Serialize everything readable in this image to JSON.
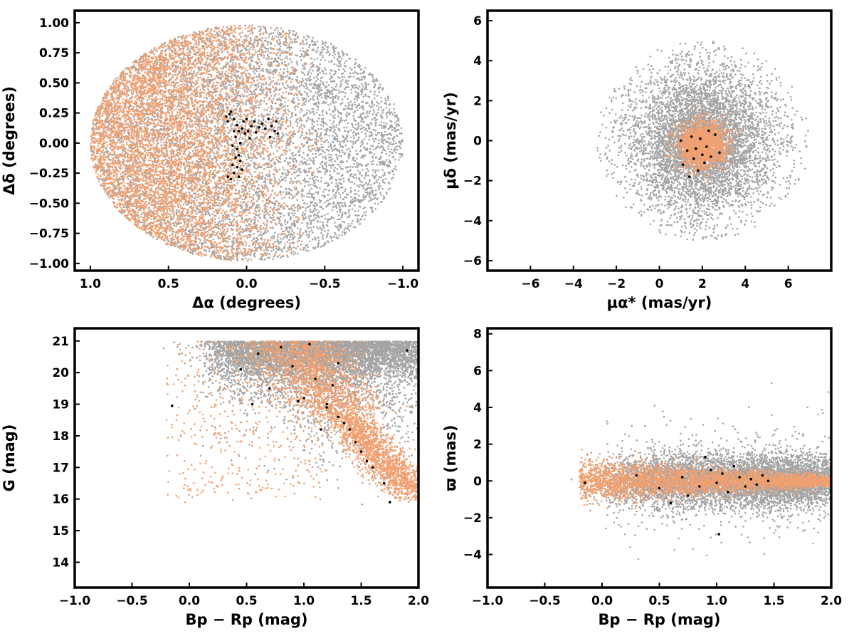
{
  "colors": {
    "field": "#a4a4a4",
    "candidate": "#f0a070",
    "member": "#000000",
    "frame": "#000000"
  },
  "chart_data": [
    {
      "id": "sky",
      "type": "scatter",
      "xlabel": "Δα (degrees)",
      "ylabel": "Δδ (degrees)",
      "xlim": [
        1.1,
        -1.1
      ],
      "ylim": [
        -1.06,
        1.1
      ],
      "x_ticks": [
        1.0,
        0.5,
        0.0,
        -0.5,
        -1.0
      ],
      "x_tick_labels": [
        "1.0",
        "0.5",
        "0.0",
        "−0.5",
        "−1.0"
      ],
      "y_ticks": [
        1.0,
        0.75,
        0.5,
        0.25,
        0.0,
        -0.25,
        -0.5,
        -0.75,
        -1.0
      ],
      "y_tick_labels": [
        "1.00",
        "0.75",
        "0.50",
        "0.25",
        "0.00",
        "−0.25",
        "−0.50",
        "−0.75",
        "−1.00"
      ],
      "series": [
        {
          "role": "field",
          "color": "#a4a4a4",
          "distribution": "disk",
          "center": [
            0,
            0
          ],
          "radius": [
            1.0,
            0.98
          ],
          "count": 6500
        },
        {
          "role": "candidate",
          "color": "#f0a070",
          "distribution": "disk",
          "center": [
            0,
            0
          ],
          "radius": [
            1.0,
            0.98
          ],
          "weight": "east-heavy",
          "count": 6000
        },
        {
          "role": "member",
          "color": "#000000",
          "points": [
            [
              0.13,
              0.22
            ],
            [
              0.12,
              0.18
            ],
            [
              0.1,
              0.26
            ],
            [
              0.08,
              0.2
            ],
            [
              0.06,
              0.15
            ],
            [
              0.05,
              0.1
            ],
            [
              0.07,
              0.05
            ],
            [
              0.04,
              0.0
            ],
            [
              0.06,
              -0.05
            ],
            [
              0.05,
              -0.1
            ],
            [
              0.04,
              -0.15
            ],
            [
              0.06,
              -0.2
            ],
            [
              0.08,
              -0.25
            ],
            [
              0.1,
              -0.3
            ],
            [
              0.12,
              -0.28
            ],
            [
              0.03,
              0.12
            ],
            [
              0.02,
              0.18
            ],
            [
              0.01,
              0.08
            ],
            [
              -0.01,
              0.1
            ],
            [
              -0.03,
              0.14
            ],
            [
              -0.05,
              0.18
            ],
            [
              -0.08,
              0.13
            ],
            [
              -0.1,
              0.16
            ],
            [
              -0.12,
              0.12
            ],
            [
              -0.14,
              0.2
            ],
            [
              -0.16,
              0.14
            ],
            [
              -0.18,
              0.1
            ],
            [
              -0.2,
              0.08
            ],
            [
              -0.19,
              0.18
            ],
            [
              -0.15,
              0.05
            ],
            [
              -0.02,
              0.04
            ],
            [
              0.09,
              -0.02
            ],
            [
              0.07,
              -0.12
            ],
            [
              0.03,
              -0.22
            ],
            [
              0.09,
              -0.18
            ],
            [
              0.11,
              0.24
            ],
            [
              0.0,
              0.2
            ],
            [
              -0.06,
              0.09
            ],
            [
              0.05,
              -0.28
            ],
            [
              0.08,
              0.1
            ]
          ]
        }
      ]
    },
    {
      "id": "proper-motion",
      "type": "scatter",
      "xlabel": "μα* (mas/yr)",
      "ylabel": "μδ (mas/yr)",
      "xlim": [
        -8,
        8
      ],
      "ylim": [
        -6.5,
        6.5
      ],
      "x_ticks": [
        -6,
        -4,
        -2,
        0,
        2,
        4,
        6
      ],
      "x_tick_labels": [
        "−6",
        "−4",
        "−2",
        "0",
        "2",
        "4",
        "6"
      ],
      "y_ticks": [
        6,
        4,
        2,
        0,
        -2,
        -4,
        -6
      ],
      "y_tick_labels": [
        "6",
        "4",
        "2",
        "0",
        "−2",
        "−4",
        "−6"
      ],
      "series": [
        {
          "role": "field",
          "color": "#a4a4a4",
          "distribution": "gaussian-clipped",
          "center": [
            2.0,
            0.0
          ],
          "sigma": [
            1.6,
            1.8
          ],
          "clip_radius": 5.0,
          "count": 6000
        },
        {
          "role": "candidate",
          "color": "#f0a070",
          "distribution": "gaussian",
          "center": [
            2.0,
            -0.2
          ],
          "sigma": [
            0.55,
            0.55
          ],
          "count": 1800
        },
        {
          "role": "member",
          "color": "#000000",
          "points": [
            [
              1.3,
              -0.5
            ],
            [
              1.6,
              -0.9
            ],
            [
              2.2,
              -0.3
            ],
            [
              1.9,
              0.1
            ],
            [
              2.4,
              -0.8
            ],
            [
              1.1,
              -1.2
            ],
            [
              1.8,
              -1.5
            ],
            [
              2.6,
              0.3
            ],
            [
              1.5,
              0.2
            ],
            [
              2.1,
              -1.1
            ],
            [
              1.0,
              0.0
            ],
            [
              2.8,
              -0.6
            ],
            [
              1.7,
              -0.4
            ],
            [
              2.3,
              0.5
            ],
            [
              1.4,
              -1.8
            ],
            [
              2.0,
              -0.7
            ]
          ]
        }
      ]
    },
    {
      "id": "cmd",
      "type": "scatter",
      "xlabel": "Bp − Rp (mag)",
      "ylabel": "G (mag)",
      "xlim": [
        -1.0,
        2.0
      ],
      "ylim": [
        13.2,
        21.4
      ],
      "y_inverted": false,
      "x_ticks": [
        -1.0,
        -0.5,
        0.0,
        0.5,
        1.0,
        1.5,
        2.0
      ],
      "x_tick_labels": [
        "−1.0",
        "−0.5",
        "0.0",
        "0.5",
        "1.0",
        "1.5",
        "2.0"
      ],
      "y_ticks": [
        21,
        20,
        19,
        18,
        17,
        16,
        15,
        14
      ],
      "y_tick_labels": [
        "21",
        "20",
        "19",
        "18",
        "17",
        "16",
        "15",
        "14"
      ],
      "series": [
        {
          "role": "field",
          "color": "#a4a4a4",
          "distribution": "cmd-field",
          "count": 6000
        },
        {
          "role": "candidate",
          "color": "#f0a070",
          "distribution": "cmd-sequence",
          "count": 3500
        },
        {
          "role": "member",
          "color": "#000000",
          "points": [
            [
              0.6,
              20.6
            ],
            [
              0.7,
              19.5
            ],
            [
              0.9,
              20.2
            ],
            [
              1.0,
              19.2
            ],
            [
              1.1,
              19.8
            ],
            [
              1.2,
              19.0
            ],
            [
              1.3,
              18.6
            ],
            [
              1.35,
              18.4
            ],
            [
              1.4,
              18.2
            ],
            [
              1.5,
              17.5
            ],
            [
              1.55,
              17.2
            ],
            [
              1.6,
              17.0
            ],
            [
              1.7,
              16.5
            ],
            [
              1.75,
              15.9
            ],
            [
              1.2,
              18.9
            ],
            [
              1.25,
              19.6
            ],
            [
              1.05,
              20.9
            ],
            [
              0.8,
              20.8
            ],
            [
              -0.15,
              18.95
            ],
            [
              0.55,
              19.0
            ],
            [
              1.45,
              17.8
            ],
            [
              1.15,
              18.2
            ],
            [
              0.95,
              19.1
            ],
            [
              1.9,
              20.7
            ],
            [
              0.45,
              20.1
            ],
            [
              1.3,
              20.3
            ]
          ]
        }
      ]
    },
    {
      "id": "parallax",
      "type": "scatter",
      "xlabel": "Bp − Rp (mag)",
      "ylabel": "ϖ (mas)",
      "xlim": [
        -1.0,
        2.0
      ],
      "ylim": [
        -5.8,
        8.3
      ],
      "x_ticks": [
        -1.0,
        -0.5,
        0.0,
        0.5,
        1.0,
        1.5,
        2.0
      ],
      "x_tick_labels": [
        "−1.0",
        "−0.5",
        "0.0",
        "0.5",
        "1.0",
        "1.5",
        "2.0"
      ],
      "y_ticks": [
        8,
        6,
        4,
        2,
        0,
        -2,
        -4
      ],
      "y_tick_labels": [
        "8",
        "6",
        "4",
        "2",
        "0",
        "−2",
        "−4"
      ],
      "series": [
        {
          "role": "field",
          "color": "#a4a4a4",
          "distribution": "plx-field",
          "count": 6500
        },
        {
          "role": "candidate",
          "color": "#f0a070",
          "distribution": "plx-sequence",
          "count": 3200
        },
        {
          "role": "member",
          "color": "#000000",
          "points": [
            [
              0.3,
              0.3
            ],
            [
              0.5,
              -0.4
            ],
            [
              0.7,
              0.2
            ],
            [
              0.85,
              -0.3
            ],
            [
              0.95,
              0.6
            ],
            [
              1.0,
              -0.1
            ],
            [
              1.05,
              0.4
            ],
            [
              1.1,
              -0.6
            ],
            [
              1.2,
              0.2
            ],
            [
              1.25,
              -0.3
            ],
            [
              1.3,
              0.1
            ],
            [
              1.35,
              -0.2
            ],
            [
              1.4,
              0.3
            ],
            [
              1.02,
              -2.9
            ],
            [
              0.6,
              -1.2
            ],
            [
              0.9,
              1.3
            ],
            [
              1.15,
              0.8
            ],
            [
              0.75,
              -0.8
            ],
            [
              -0.15,
              -0.1
            ],
            [
              1.45,
              0.0
            ]
          ]
        }
      ]
    }
  ]
}
